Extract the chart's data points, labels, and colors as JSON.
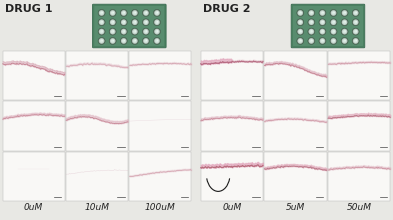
{
  "background_color": "#e8e8e4",
  "cell_bg": "#f9f8f6",
  "drug1_label": "DRUG 1",
  "drug2_label": "DRUG 2",
  "drug1_concentrations": [
    "0uM",
    "10uM",
    "100uM"
  ],
  "drug2_concentrations": [
    "0uM",
    "5uM",
    "50uM"
  ],
  "label_fontsize": 8,
  "tick_fontsize": 6.5,
  "plate_outer": "#4a8060",
  "plate_mid": "#3a6a50",
  "plate_light": "#7aaa90",
  "plate_well_outer": "#708878",
  "plate_well_bg": "#b0c8b8",
  "plate_well_inner": "#c8d8d0",
  "plate_well_center": "#d8e8e0",
  "tissue_pink_dark": "#c07888",
  "tissue_pink_light": "#ddb0be",
  "tissue_faint": "#d4b0be"
}
